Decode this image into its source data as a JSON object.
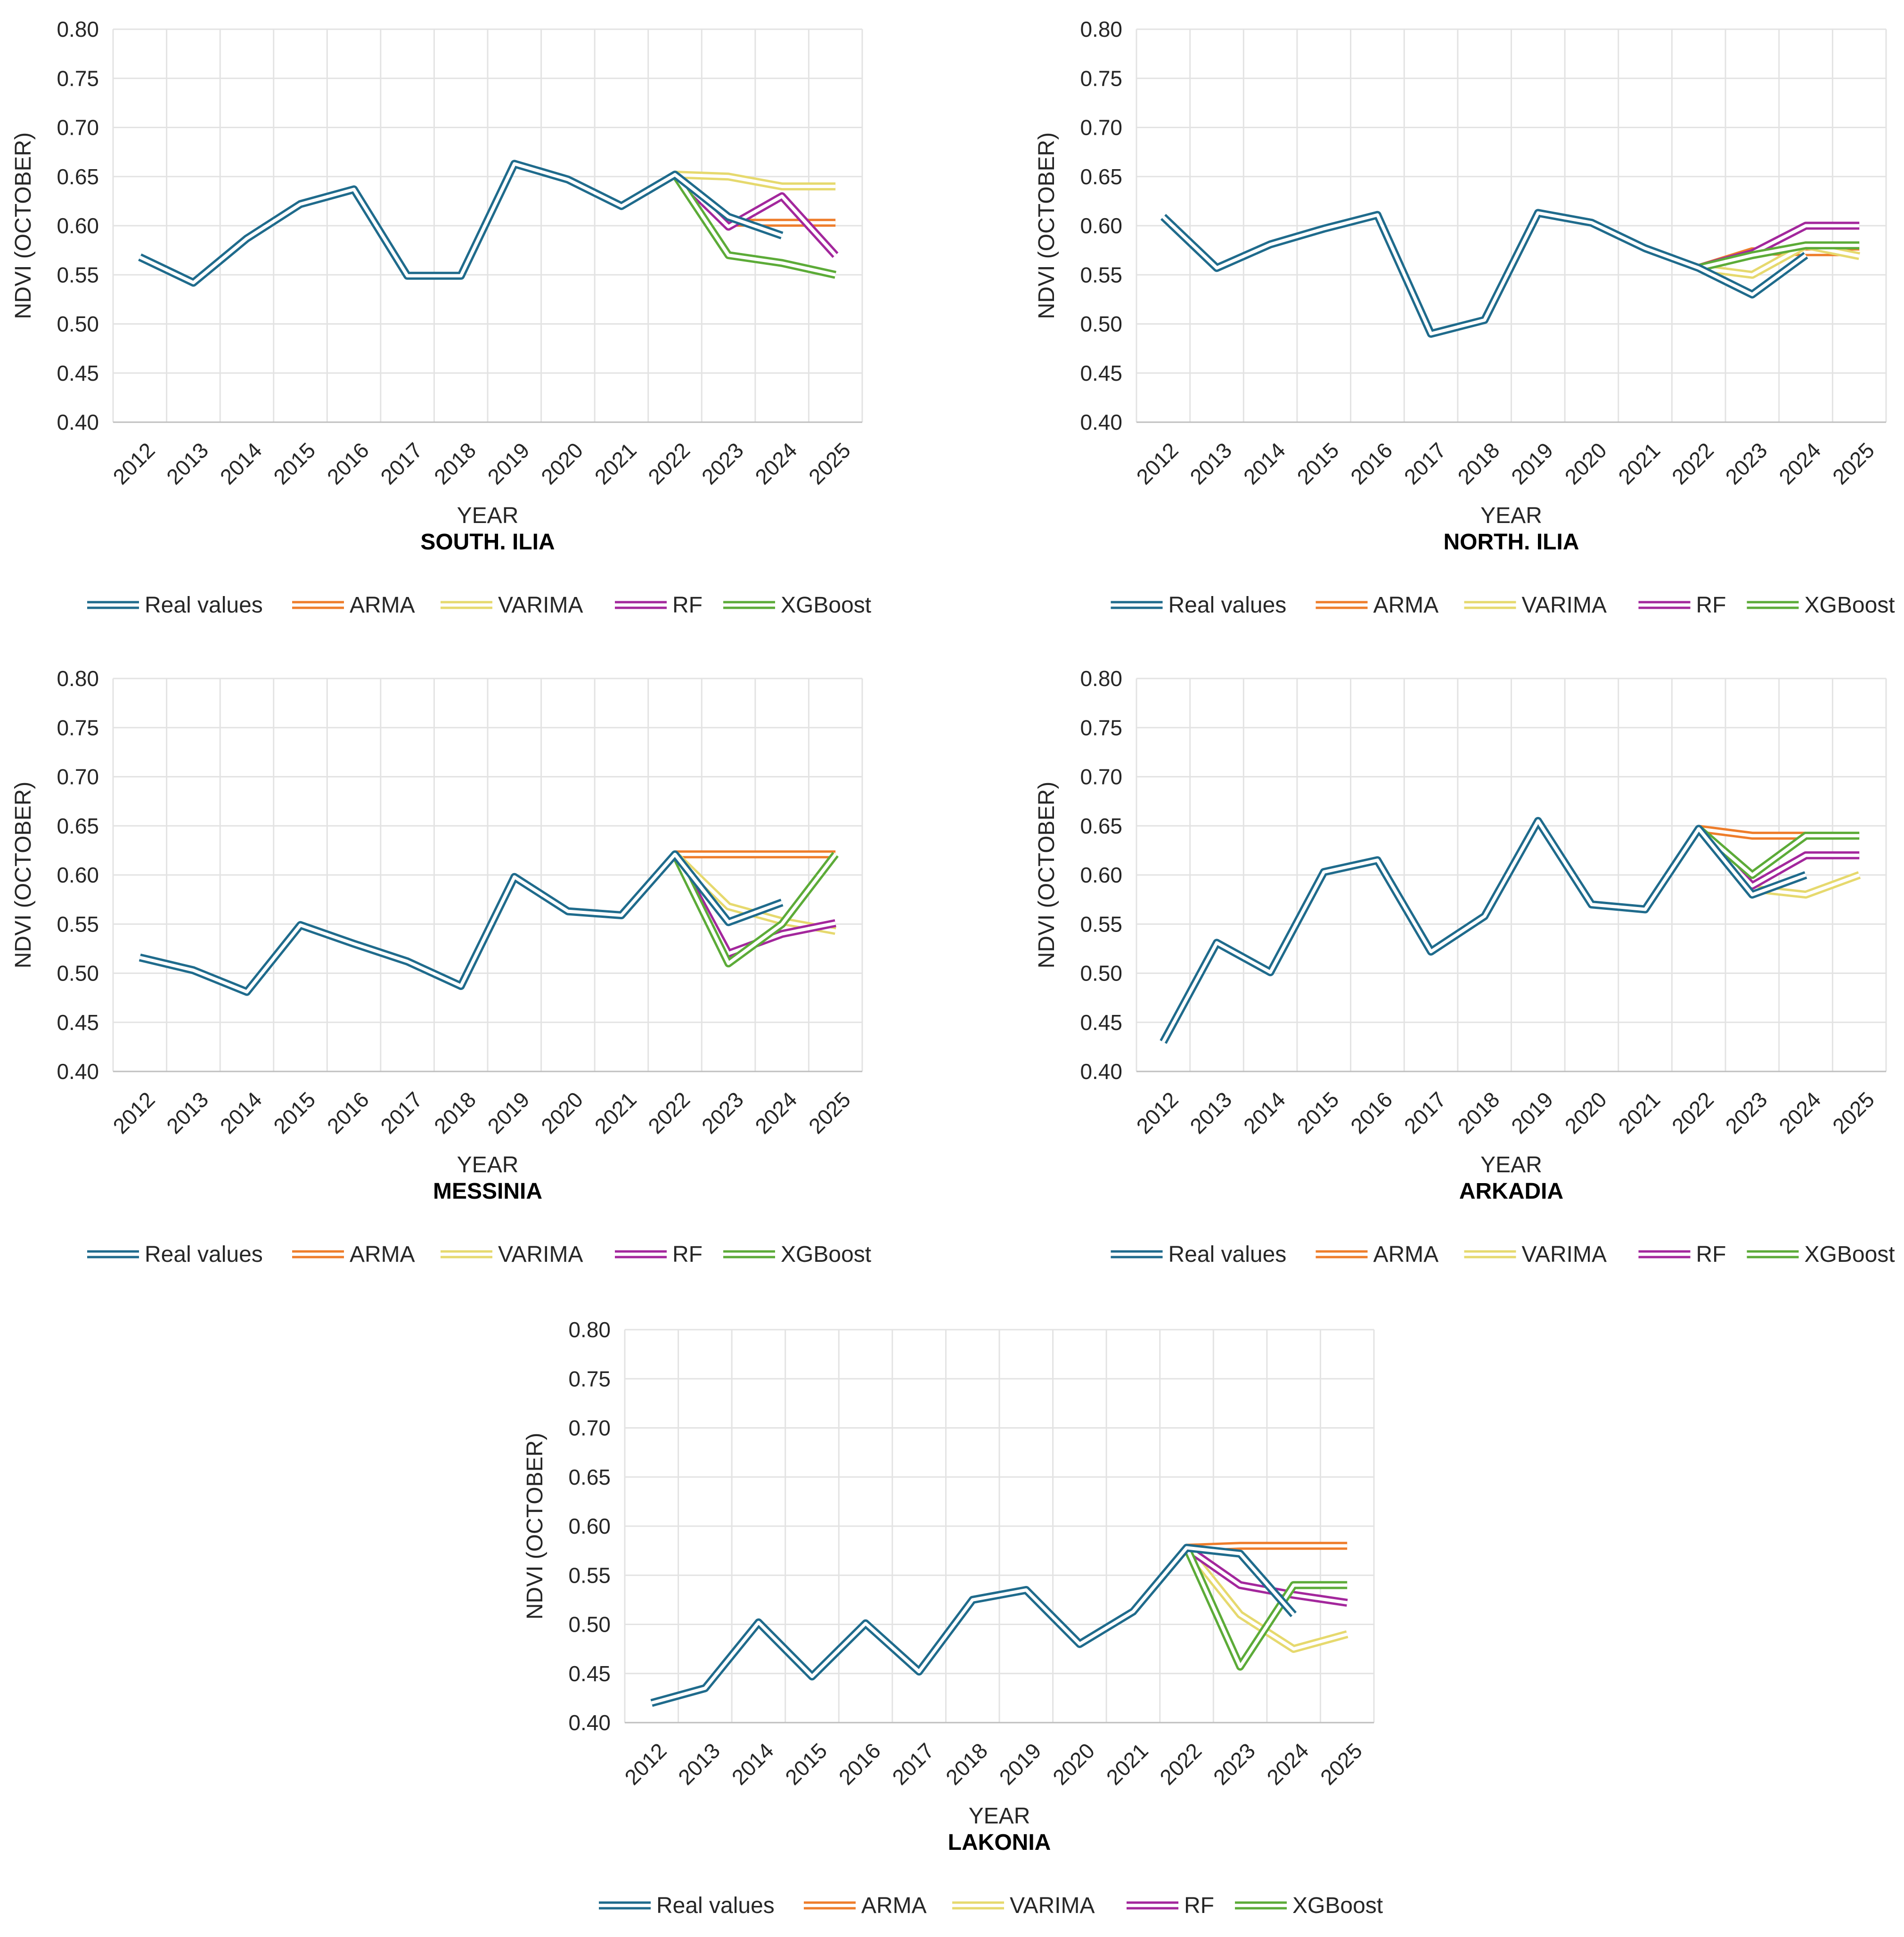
{
  "colors": {
    "Real values": "#1f6b8c",
    "ARMA": "#ee7d2b",
    "VARIMA": "#e6d96e",
    "RF": "#a3279c",
    "XGBoost": "#5cab38",
    "grid": "#e3e3e3",
    "axis": "#bfbfbf"
  },
  "chart_data": [
    {
      "type": "line",
      "title": "SOUTH. ILIA",
      "xlabel": "YEAR",
      "ylabel": "NDVI (OCTOBER)",
      "ylim": [
        0.4,
        0.8
      ],
      "y_ticks": [
        "0.40",
        "0.45",
        "0.50",
        "0.55",
        "0.60",
        "0.65",
        "0.70",
        "0.75",
        "0.80"
      ],
      "categories": [
        "2012",
        "2013",
        "2014",
        "2015",
        "2016",
        "2017",
        "2018",
        "2019",
        "2020",
        "2021",
        "2022",
        "2023",
        "2024",
        "2025"
      ],
      "legend": [
        "Real values",
        "ARMA",
        "VARIMA",
        "RF",
        "XGBoost"
      ],
      "series": [
        {
          "name": "Real values",
          "values": [
            0.568,
            0.542,
            0.587,
            0.622,
            0.637,
            0.549,
            0.549,
            0.663,
            0.647,
            0.62,
            0.652,
            0.609,
            0.59,
            null
          ]
        },
        {
          "name": "ARMA",
          "values": [
            null,
            null,
            null,
            null,
            null,
            null,
            null,
            null,
            null,
            null,
            0.652,
            0.603,
            0.603,
            0.603
          ]
        },
        {
          "name": "VARIMA",
          "values": [
            null,
            null,
            null,
            null,
            null,
            null,
            null,
            null,
            null,
            null,
            0.652,
            0.65,
            0.64,
            0.64
          ]
        },
        {
          "name": "RF",
          "values": [
            null,
            null,
            null,
            null,
            null,
            null,
            null,
            null,
            null,
            null,
            0.652,
            0.599,
            0.63,
            0.57
          ]
        },
        {
          "name": "XGBoost",
          "values": [
            null,
            null,
            null,
            null,
            null,
            null,
            null,
            null,
            null,
            null,
            0.652,
            0.57,
            0.562,
            0.55
          ]
        }
      ]
    },
    {
      "type": "line",
      "title": "NORTH. ILIA",
      "xlabel": "YEAR",
      "ylabel": "NDVI (OCTOBER)",
      "ylim": [
        0.4,
        0.8
      ],
      "y_ticks": [
        "0.40",
        "0.45",
        "0.50",
        "0.55",
        "0.60",
        "0.65",
        "0.70",
        "0.75",
        "0.80"
      ],
      "categories": [
        "2012",
        "2013",
        "2014",
        "2015",
        "2016",
        "2017",
        "2018",
        "2019",
        "2020",
        "2021",
        "2022",
        "2023",
        "2024",
        "2025"
      ],
      "legend": [
        "Real values",
        "ARMA",
        "VARIMA",
        "RF",
        "XGBoost"
      ],
      "series": [
        {
          "name": "Real values",
          "values": [
            0.609,
            0.557,
            0.581,
            0.597,
            0.611,
            0.49,
            0.504,
            0.613,
            0.603,
            0.577,
            0.557,
            0.53,
            0.57,
            null
          ]
        },
        {
          "name": "ARMA",
          "values": [
            null,
            null,
            null,
            null,
            null,
            null,
            null,
            null,
            null,
            null,
            0.557,
            0.574,
            0.573,
            0.573
          ]
        },
        {
          "name": "VARIMA",
          "values": [
            null,
            null,
            null,
            null,
            null,
            null,
            null,
            null,
            null,
            null,
            0.557,
            0.55,
            0.58,
            0.569
          ]
        },
        {
          "name": "RF",
          "values": [
            null,
            null,
            null,
            null,
            null,
            null,
            null,
            null,
            null,
            null,
            0.557,
            0.572,
            0.6,
            0.6
          ]
        },
        {
          "name": "XGBoost",
          "values": [
            null,
            null,
            null,
            null,
            null,
            null,
            null,
            null,
            null,
            null,
            0.557,
            0.57,
            0.58,
            0.58
          ]
        }
      ]
    },
    {
      "type": "line",
      "title": "MESSINIA",
      "xlabel": "YEAR",
      "ylabel": "NDVI (OCTOBER)",
      "ylim": [
        0.4,
        0.8
      ],
      "y_ticks": [
        "0.40",
        "0.45",
        "0.50",
        "0.55",
        "0.60",
        "0.65",
        "0.70",
        "0.75",
        "0.80"
      ],
      "categories": [
        "2012",
        "2013",
        "2014",
        "2015",
        "2016",
        "2017",
        "2018",
        "2019",
        "2020",
        "2021",
        "2022",
        "2023",
        "2024",
        "2025"
      ],
      "legend": [
        "Real values",
        "ARMA",
        "VARIMA",
        "RF",
        "XGBoost"
      ],
      "series": [
        {
          "name": "Real values",
          "values": [
            0.516,
            0.503,
            0.481,
            0.549,
            0.53,
            0.512,
            0.487,
            0.598,
            0.563,
            0.559,
            0.621,
            0.552,
            0.572,
            null
          ]
        },
        {
          "name": "ARMA",
          "values": [
            null,
            null,
            null,
            null,
            null,
            null,
            null,
            null,
            null,
            null,
            0.621,
            0.621,
            0.621,
            0.621
          ]
        },
        {
          "name": "VARIMA",
          "values": [
            null,
            null,
            null,
            null,
            null,
            null,
            null,
            null,
            null,
            null,
            0.621,
            0.568,
            0.553,
            0.543
          ]
        },
        {
          "name": "RF",
          "values": [
            null,
            null,
            null,
            null,
            null,
            null,
            null,
            null,
            null,
            null,
            0.621,
            0.52,
            0.54,
            0.551
          ]
        },
        {
          "name": "XGBoost",
          "values": [
            null,
            null,
            null,
            null,
            null,
            null,
            null,
            null,
            null,
            null,
            0.621,
            0.51,
            0.55,
            0.621
          ]
        }
      ]
    },
    {
      "type": "line",
      "title": "ARKADIA",
      "xlabel": "YEAR",
      "ylabel": "NDVI (OCTOBER)",
      "ylim": [
        0.4,
        0.8
      ],
      "y_ticks": [
        "0.40",
        "0.45",
        "0.50",
        "0.55",
        "0.60",
        "0.65",
        "0.70",
        "0.75",
        "0.80"
      ],
      "categories": [
        "2012",
        "2013",
        "2014",
        "2015",
        "2016",
        "2017",
        "2018",
        "2019",
        "2020",
        "2021",
        "2022",
        "2023",
        "2024",
        "2025"
      ],
      "legend": [
        "Real values",
        "ARMA",
        "VARIMA",
        "RF",
        "XGBoost"
      ],
      "series": [
        {
          "name": "Real values",
          "values": [
            0.43,
            0.531,
            0.501,
            0.603,
            0.615,
            0.522,
            0.558,
            0.655,
            0.57,
            0.565,
            0.647,
            0.58,
            0.6,
            null
          ]
        },
        {
          "name": "ARMA",
          "values": [
            null,
            null,
            null,
            null,
            null,
            null,
            null,
            null,
            null,
            null,
            0.647,
            0.64,
            0.64,
            null
          ]
        },
        {
          "name": "VARIMA",
          "values": [
            null,
            null,
            null,
            null,
            null,
            null,
            null,
            null,
            null,
            null,
            0.647,
            0.586,
            0.58,
            0.6
          ]
        },
        {
          "name": "RF",
          "values": [
            null,
            null,
            null,
            null,
            null,
            null,
            null,
            null,
            null,
            null,
            0.647,
            0.589,
            0.62,
            0.62
          ]
        },
        {
          "name": "XGBoost",
          "values": [
            null,
            null,
            null,
            null,
            null,
            null,
            null,
            null,
            null,
            null,
            0.647,
            0.6,
            0.64,
            0.64
          ]
        }
      ]
    },
    {
      "type": "line",
      "title": "LAKONIA",
      "xlabel": "YEAR",
      "ylabel": "NDVI (OCTOBER)",
      "ylim": [
        0.4,
        0.8
      ],
      "y_ticks": [
        "0.40",
        "0.45",
        "0.50",
        "0.55",
        "0.60",
        "0.65",
        "0.70",
        "0.75",
        "0.80"
      ],
      "categories": [
        "2012",
        "2013",
        "2014",
        "2015",
        "2016",
        "2017",
        "2018",
        "2019",
        "2020",
        "2021",
        "2022",
        "2023",
        "2024",
        "2025"
      ],
      "legend": [
        "Real values",
        "ARMA",
        "VARIMA",
        "RF",
        "XGBoost"
      ],
      "series": [
        {
          "name": "Real values",
          "values": [
            0.42,
            0.435,
            0.502,
            0.447,
            0.501,
            0.452,
            0.525,
            0.535,
            0.48,
            0.513,
            0.578,
            0.572,
            0.51,
            null
          ]
        },
        {
          "name": "ARMA",
          "values": [
            null,
            null,
            null,
            null,
            null,
            null,
            null,
            null,
            null,
            null,
            0.578,
            0.58,
            0.58,
            0.58
          ]
        },
        {
          "name": "VARIMA",
          "values": [
            null,
            null,
            null,
            null,
            null,
            null,
            null,
            null,
            null,
            null,
            0.578,
            0.51,
            0.475,
            0.49
          ]
        },
        {
          "name": "RF",
          "values": [
            null,
            null,
            null,
            null,
            null,
            null,
            null,
            null,
            null,
            null,
            0.578,
            0.54,
            0.53,
            0.522
          ]
        },
        {
          "name": "XGBoost",
          "values": [
            null,
            null,
            null,
            null,
            null,
            null,
            null,
            null,
            null,
            null,
            0.578,
            0.457,
            0.54,
            0.54
          ]
        }
      ]
    }
  ]
}
